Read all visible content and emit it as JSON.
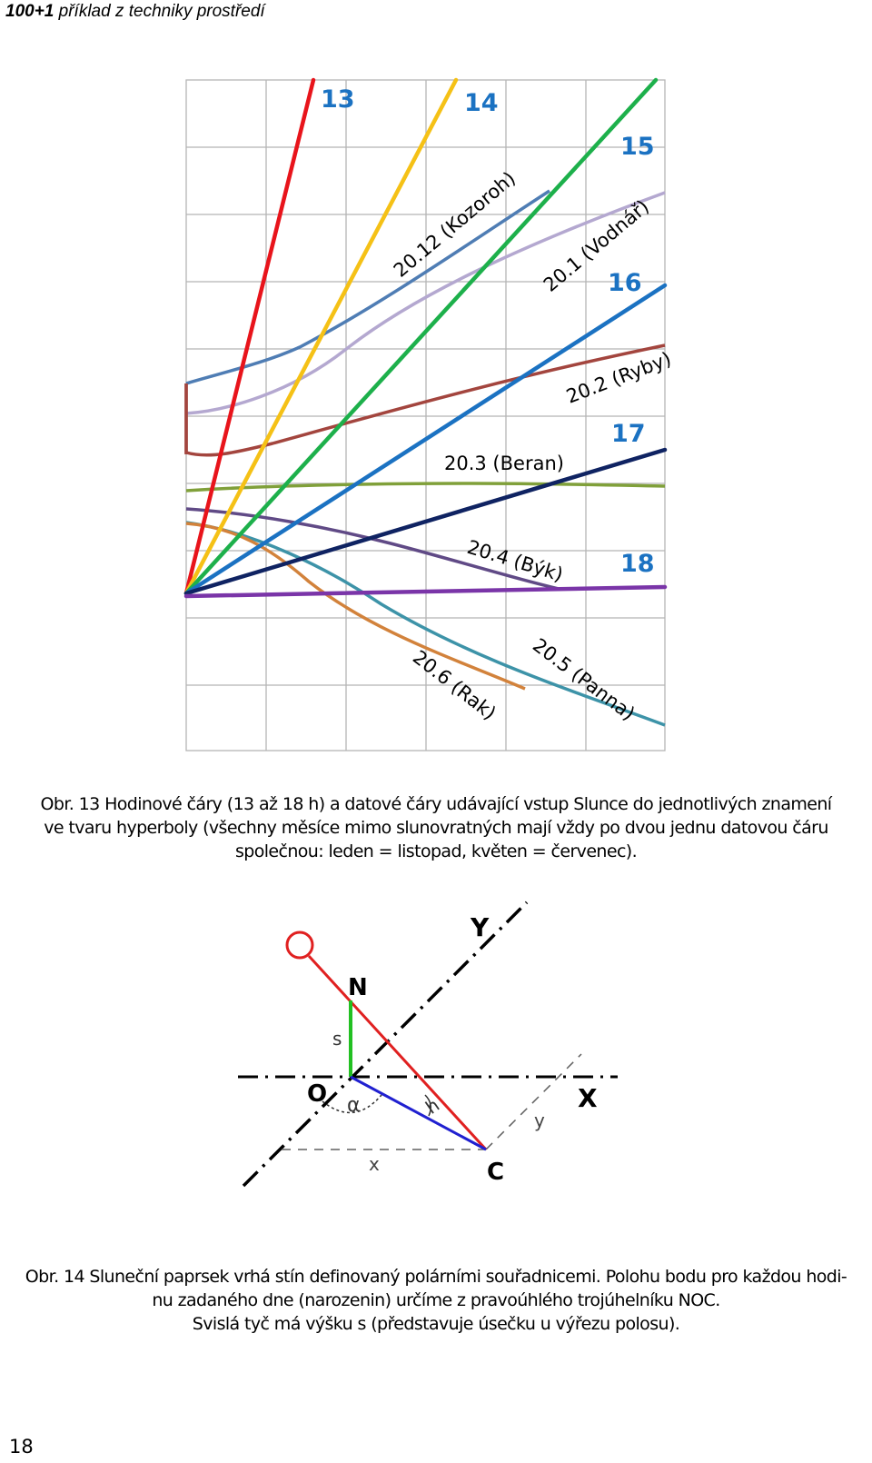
{
  "header": {
    "bold": "100+1",
    "italic": " příklad z techniky prostředí"
  },
  "figure1": {
    "hour_labels": [
      "13",
      "14",
      "15",
      "16",
      "17",
      "18"
    ],
    "date_labels": [
      "20.12 (Kozoroh)",
      "20.1 (Vodnář)",
      "20.2 (Ryby)",
      "20.3 (Beran)",
      "20.4 (Býk)",
      "20.5 (Panna)",
      "20.6 (Rak)"
    ],
    "colors": {
      "hour_13": "#e8141b",
      "hour_14": "#f5c116",
      "hour_15": "#1db04b",
      "hour_16": "#1b72c2",
      "hour_17": "#0f2362",
      "hour_18": "#7a35a8",
      "kozoroh": "#4f7db4",
      "vodnar": "#b4a8d0",
      "ryby": "#a3453e",
      "beran": "#80a03a",
      "byk": "#604a86",
      "panna": "#3d93a8",
      "rak": "#d2823b",
      "label_blue": "#1b72c2",
      "grid": "#b5b5b5"
    }
  },
  "caption1": {
    "line1": "Obr. 13 Hodinové čáry (13 až 18 h) a datové čáry udávající vstup Slunce do jednotlivých znamení",
    "line2": "ve tvaru hyperboly (všechny měsíce mimo slunovratných mají vždy po dvou jednu datovou čáru",
    "line3": "společnou: leden = listopad, květen = červenec)."
  },
  "figure2": {
    "labels": {
      "y_axis": "Y",
      "x_axis": "X",
      "n": "N",
      "s": "s",
      "o": "O",
      "alpha": "α",
      "h": "h",
      "c": "C",
      "x": "x",
      "y": "y"
    },
    "colors": {
      "sun": "#e02020",
      "ray": "#e02020",
      "rod": "#22c022",
      "shadow": "#2020d0",
      "axis": "#000000",
      "aux": "#606060"
    }
  },
  "caption2": {
    "line1": "Obr. 14 Sluneční paprsek vrhá stín definovaný polárními souřadnicemi. Polohu bodu pro každou hodi-",
    "line2": "nu zadaného dne (narozenin) určíme z pravoúhlého trojúhelníku NOC.",
    "line3": "Svislá tyč má výšku s (představuje úsečku u výřezu polosu)."
  },
  "page_number": "18"
}
